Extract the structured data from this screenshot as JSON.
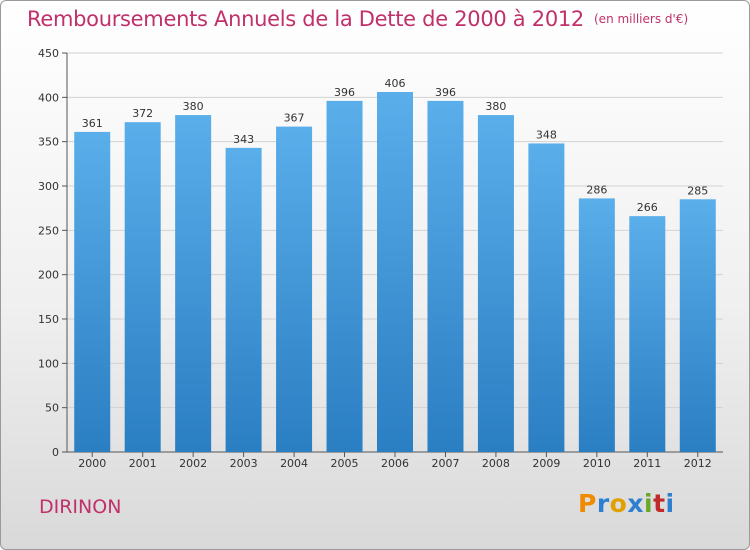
{
  "header": {
    "title": "Remboursements Annuels de la Dette de 2000 à 2012",
    "unit": "(en milliers d'€)"
  },
  "footer": {
    "commune": "DIRINON",
    "logo_text": "Proxiti",
    "logo_colors": [
      "#f08a00",
      "#2e7fd0",
      "#e0a000",
      "#2e7fd0",
      "#6aa82a",
      "#c02a2a",
      "#2e7fd0"
    ]
  },
  "colors": {
    "bar_top": "#5aaeea",
    "bar_bottom": "#2a7ec2",
    "accent": "#c0306a"
  },
  "chart_data": {
    "type": "bar",
    "title": "Remboursements Annuels de la Dette de 2000 à 2012",
    "xlabel": "",
    "ylabel": "",
    "categories": [
      "2000",
      "2001",
      "2002",
      "2003",
      "2004",
      "2005",
      "2006",
      "2007",
      "2008",
      "2009",
      "2010",
      "2011",
      "2012"
    ],
    "values": [
      361,
      372,
      380,
      343,
      367,
      396,
      406,
      396,
      380,
      348,
      286,
      266,
      285
    ],
    "ylim": [
      0,
      450
    ],
    "yticks": [
      0,
      50,
      100,
      150,
      200,
      250,
      300,
      350,
      400,
      450
    ],
    "grid": true
  }
}
